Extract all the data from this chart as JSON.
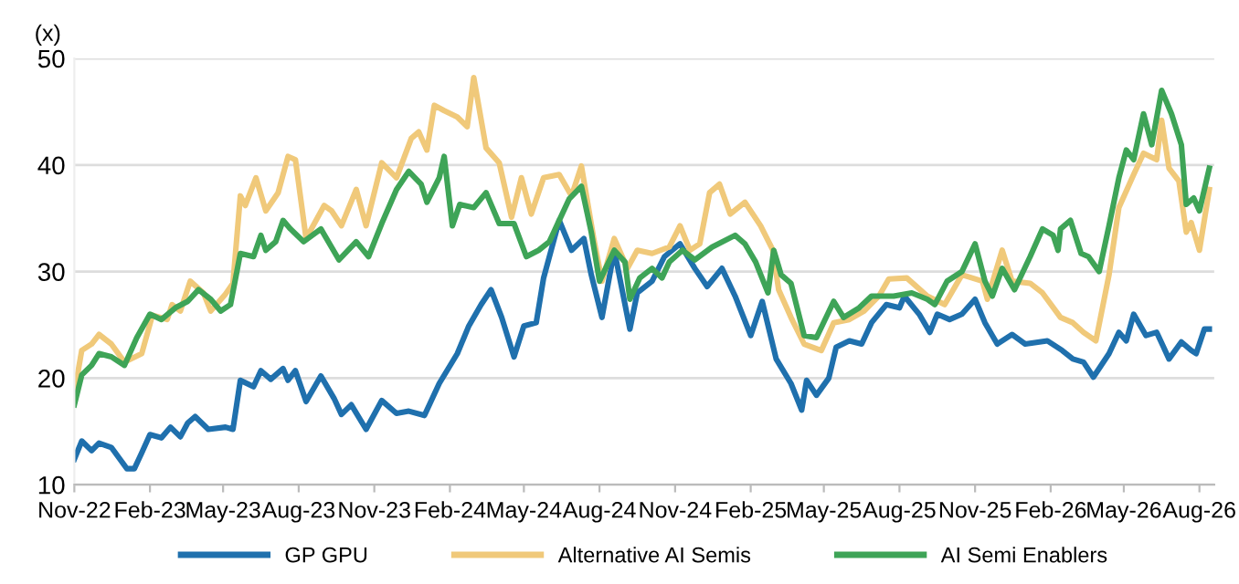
{
  "chart_data": {
    "type": "line",
    "ylabel": "(x)",
    "xlim": [
      "2022-11-01",
      "2026-08-19"
    ],
    "ylim": [
      10,
      50
    ],
    "yticks": [
      10,
      20,
      30,
      40,
      50
    ],
    "xticks": [
      {
        "value": "2022-11-01",
        "label": "Nov-22"
      },
      {
        "value": "2023-02-01",
        "label": "Feb-23"
      },
      {
        "value": "2023-05-01",
        "label": "May-23"
      },
      {
        "value": "2023-08-01",
        "label": "Aug-23"
      },
      {
        "value": "2023-11-01",
        "label": "Nov-23"
      },
      {
        "value": "2024-02-01",
        "label": "Feb-24"
      },
      {
        "value": "2024-05-01",
        "label": "May-24"
      },
      {
        "value": "2024-08-01",
        "label": "Aug-24"
      },
      {
        "value": "2024-11-01",
        "label": "Nov-24"
      },
      {
        "value": "2025-02-01",
        "label": "Feb-25"
      },
      {
        "value": "2025-05-01",
        "label": "May-25"
      },
      {
        "value": "2025-08-01",
        "label": "Aug-25"
      },
      {
        "value": "2025-11-01",
        "label": "Nov-25"
      },
      {
        "value": "2026-02-01",
        "label": "Feb-26"
      },
      {
        "value": "2026-05-01",
        "label": "May-26"
      },
      {
        "value": "2026-08-01",
        "label": "Aug-26"
      }
    ],
    "grid": "y",
    "legend": "bottom",
    "marker": "none",
    "line_style": "solid",
    "series": [
      {
        "name": "GP GPU",
        "color": "#1f70ad",
        "x": [
          "2022-11-01",
          "2022-11-10",
          "2022-11-22",
          "2022-12-01",
          "2022-12-16",
          "2023-01-04",
          "2023-01-13",
          "2023-01-22",
          "2023-02-01",
          "2023-02-15",
          "2023-02-26",
          "2023-03-10",
          "2023-03-19",
          "2023-03-28",
          "2023-04-13",
          "2023-05-04",
          "2023-05-13",
          "2023-05-22",
          "2023-06-07",
          "2023-06-16",
          "2023-06-28",
          "2023-07-13",
          "2023-07-19",
          "2023-07-28",
          "2023-08-10",
          "2023-08-28",
          "2023-09-13",
          "2023-09-22",
          "2023-10-04",
          "2023-10-22",
          "2023-11-10",
          "2023-11-28",
          "2023-12-13",
          "2024-01-01",
          "2024-01-19",
          "2024-02-10",
          "2024-02-24",
          "2024-03-10",
          "2024-03-22",
          "2024-04-04",
          "2024-04-19",
          "2024-05-01",
          "2024-05-16",
          "2024-05-25",
          "2024-06-13",
          "2024-06-28",
          "2024-07-13",
          "2024-07-22",
          "2024-08-04",
          "2024-08-19",
          "2024-09-07",
          "2024-09-16",
          "2024-10-04",
          "2024-10-19",
          "2024-11-07",
          "2024-11-25",
          "2024-12-10",
          "2024-12-28",
          "2025-01-13",
          "2025-02-01",
          "2025-02-15",
          "2025-03-04",
          "2025-03-22",
          "2025-04-04",
          "2025-04-10",
          "2025-04-22",
          "2025-05-07",
          "2025-05-16",
          "2025-06-01",
          "2025-06-16",
          "2025-06-28",
          "2025-07-16",
          "2025-08-01",
          "2025-08-07",
          "2025-08-25",
          "2025-09-07",
          "2025-09-16",
          "2025-10-01",
          "2025-10-16",
          "2025-11-01",
          "2025-11-13",
          "2025-11-28",
          "2025-12-16",
          "2026-01-01",
          "2026-01-28",
          "2026-02-15",
          "2026-02-28",
          "2026-03-13",
          "2026-03-25",
          "2026-04-13",
          "2026-04-25",
          "2026-05-04",
          "2026-05-13",
          "2026-05-28",
          "2026-06-10",
          "2026-06-25",
          "2026-07-10",
          "2026-07-22",
          "2026-07-28",
          "2026-08-07",
          "2026-08-13"
        ],
        "values": [
          12.4,
          14.1,
          13.2,
          13.9,
          13.5,
          11.5,
          11.5,
          13.0,
          14.7,
          14.4,
          15.4,
          14.5,
          15.8,
          16.4,
          15.2,
          15.4,
          15.2,
          19.8,
          19.2,
          20.7,
          19.9,
          20.9,
          19.8,
          20.7,
          17.8,
          20.2,
          18.1,
          16.6,
          17.5,
          15.2,
          17.9,
          16.7,
          16.9,
          16.5,
          19.5,
          22.3,
          24.9,
          26.9,
          28.3,
          25.7,
          22.0,
          24.9,
          25.2,
          29.4,
          34.8,
          32.0,
          33.1,
          29.7,
          25.7,
          32.0,
          24.6,
          28.0,
          29.1,
          31.4,
          32.6,
          30.3,
          28.6,
          30.3,
          27.7,
          24.0,
          27.2,
          21.8,
          19.5,
          17.0,
          19.8,
          18.4,
          20.0,
          22.9,
          23.5,
          23.2,
          25.2,
          26.9,
          26.6,
          27.7,
          26.0,
          24.3,
          26.0,
          25.5,
          26.0,
          27.4,
          25.2,
          23.2,
          24.1,
          23.2,
          23.5,
          22.6,
          21.8,
          21.5,
          20.1,
          22.3,
          24.3,
          23.5,
          26.0,
          24.0,
          24.3,
          21.8,
          23.4,
          22.6,
          22.3,
          24.6,
          24.6
        ]
      },
      {
        "name": "Alternative AI Semis",
        "color": "#f0c97a",
        "x": [
          "2022-11-01",
          "2022-11-10",
          "2022-11-22",
          "2022-12-01",
          "2022-12-16",
          "2023-01-01",
          "2023-01-22",
          "2023-02-04",
          "2023-02-22",
          "2023-02-28",
          "2023-03-10",
          "2023-03-22",
          "2023-04-07",
          "2023-04-16",
          "2023-05-04",
          "2023-05-13",
          "2023-05-22",
          "2023-05-28",
          "2023-06-10",
          "2023-06-22",
          "2023-07-07",
          "2023-07-19",
          "2023-07-28",
          "2023-08-10",
          "2023-09-01",
          "2023-09-10",
          "2023-09-22",
          "2023-10-10",
          "2023-10-22",
          "2023-11-10",
          "2023-11-28",
          "2023-12-16",
          "2023-12-25",
          "2024-01-04",
          "2024-01-13",
          "2024-01-25",
          "2024-02-10",
          "2024-02-22",
          "2024-03-01",
          "2024-03-16",
          "2024-04-01",
          "2024-04-16",
          "2024-04-28",
          "2024-05-10",
          "2024-05-25",
          "2024-06-13",
          "2024-06-28",
          "2024-07-10",
          "2024-07-25",
          "2024-08-04",
          "2024-08-19",
          "2024-09-04",
          "2024-09-16",
          "2024-10-04",
          "2024-10-25",
          "2024-11-07",
          "2024-11-19",
          "2024-12-01",
          "2024-12-13",
          "2024-12-25",
          "2025-01-07",
          "2025-01-25",
          "2025-02-13",
          "2025-02-28",
          "2025-03-07",
          "2025-03-22",
          "2025-04-07",
          "2025-04-28",
          "2025-05-13",
          "2025-06-01",
          "2025-06-19",
          "2025-07-07",
          "2025-07-19",
          "2025-08-10",
          "2025-09-04",
          "2025-09-25",
          "2025-10-16",
          "2025-11-10",
          "2025-11-16",
          "2025-12-04",
          "2025-12-16",
          "2026-01-07",
          "2026-01-22",
          "2026-02-13",
          "2026-02-28",
          "2026-03-13",
          "2026-03-28",
          "2026-04-13",
          "2026-04-25",
          "2026-05-13",
          "2026-05-25",
          "2026-06-10",
          "2026-06-16",
          "2026-06-25",
          "2026-07-07",
          "2026-07-16",
          "2026-07-22",
          "2026-08-01",
          "2026-08-13"
        ],
        "values": [
          18.6,
          22.6,
          23.2,
          24.1,
          23.2,
          21.5,
          22.3,
          25.9,
          25.5,
          26.9,
          26.3,
          29.1,
          28.0,
          26.3,
          27.9,
          28.9,
          37.1,
          36.2,
          38.8,
          35.7,
          37.4,
          40.8,
          40.5,
          33.1,
          36.2,
          35.7,
          34.3,
          37.7,
          34.3,
          40.2,
          38.8,
          42.5,
          43.1,
          41.4,
          45.6,
          45.1,
          44.5,
          43.6,
          48.2,
          41.6,
          40.2,
          35.1,
          38.8,
          35.4,
          38.8,
          39.1,
          37.1,
          39.9,
          33.1,
          29.1,
          33.1,
          30.3,
          32.0,
          31.7,
          32.3,
          34.3,
          32.0,
          32.6,
          37.4,
          38.2,
          35.4,
          36.5,
          34.3,
          32.0,
          28.3,
          25.7,
          23.2,
          22.6,
          25.2,
          25.5,
          26.3,
          27.7,
          29.3,
          29.4,
          27.7,
          26.9,
          29.7,
          29.1,
          27.4,
          32.0,
          29.1,
          28.9,
          28.0,
          25.7,
          25.2,
          24.3,
          23.5,
          29.7,
          36.0,
          39.1,
          41.1,
          40.5,
          44.2,
          39.7,
          38.5,
          33.7,
          34.6,
          32.0,
          37.7
        ]
      },
      {
        "name": "AI Semi Enablers",
        "color": "#3ea457",
        "x": [
          "2022-11-01",
          "2022-11-10",
          "2022-11-22",
          "2022-12-01",
          "2022-12-16",
          "2023-01-01",
          "2023-01-16",
          "2023-02-01",
          "2023-02-15",
          "2023-03-04",
          "2023-03-19",
          "2023-04-01",
          "2023-04-16",
          "2023-04-28",
          "2023-05-10",
          "2023-05-22",
          "2023-06-07",
          "2023-06-16",
          "2023-06-22",
          "2023-07-04",
          "2023-07-13",
          "2023-07-22",
          "2023-08-07",
          "2023-08-28",
          "2023-09-19",
          "2023-10-10",
          "2023-10-25",
          "2023-11-10",
          "2023-11-28",
          "2023-12-13",
          "2023-12-28",
          "2024-01-04",
          "2024-01-19",
          "2024-01-25",
          "2024-02-04",
          "2024-02-13",
          "2024-03-01",
          "2024-03-16",
          "2024-04-01",
          "2024-04-19",
          "2024-05-04",
          "2024-05-19",
          "2024-06-01",
          "2024-06-10",
          "2024-06-25",
          "2024-07-10",
          "2024-07-22",
          "2024-08-01",
          "2024-08-19",
          "2024-09-01",
          "2024-09-07",
          "2024-09-19",
          "2024-10-04",
          "2024-10-16",
          "2024-10-25",
          "2024-11-10",
          "2024-11-25",
          "2024-12-16",
          "2025-01-13",
          "2025-01-25",
          "2025-02-07",
          "2025-02-22",
          "2025-03-01",
          "2025-03-10",
          "2025-03-22",
          "2025-04-07",
          "2025-04-22",
          "2025-05-13",
          "2025-05-25",
          "2025-06-13",
          "2025-06-28",
          "2025-07-25",
          "2025-08-16",
          "2025-09-04",
          "2025-09-13",
          "2025-09-28",
          "2025-10-16",
          "2025-11-01",
          "2025-11-13",
          "2025-11-22",
          "2025-12-04",
          "2025-12-19",
          "2026-01-07",
          "2026-01-22",
          "2026-02-04",
          "2026-02-10",
          "2026-02-13",
          "2026-02-25",
          "2026-03-10",
          "2026-03-19",
          "2026-04-01",
          "2026-04-13",
          "2026-04-25",
          "2026-05-04",
          "2026-05-13",
          "2026-05-25",
          "2026-06-04",
          "2026-06-16",
          "2026-06-28",
          "2026-07-10",
          "2026-07-16",
          "2026-07-25",
          "2026-08-01",
          "2026-08-13"
        ],
        "values": [
          17.5,
          20.3,
          21.2,
          22.3,
          22.0,
          21.2,
          23.8,
          26.0,
          25.5,
          26.6,
          27.2,
          28.3,
          27.4,
          26.3,
          26.9,
          31.7,
          31.4,
          33.4,
          32.0,
          32.8,
          34.8,
          34.0,
          32.8,
          34.0,
          31.1,
          32.8,
          31.4,
          34.5,
          37.7,
          39.4,
          38.2,
          36.5,
          38.8,
          40.8,
          34.3,
          36.3,
          36.0,
          37.4,
          34.5,
          34.5,
          31.4,
          32.0,
          32.8,
          34.3,
          36.8,
          38.0,
          33.7,
          29.1,
          32.0,
          30.9,
          27.4,
          29.4,
          30.3,
          29.4,
          30.9,
          32.0,
          31.1,
          32.3,
          33.4,
          32.6,
          30.9,
          28.0,
          32.0,
          29.7,
          28.9,
          24.0,
          23.8,
          27.2,
          25.7,
          26.6,
          27.7,
          27.7,
          28.0,
          27.4,
          26.9,
          29.1,
          30.0,
          32.6,
          29.1,
          27.7,
          30.3,
          28.3,
          31.4,
          34.0,
          33.4,
          32.0,
          34.0,
          34.8,
          31.7,
          31.4,
          30.0,
          34.3,
          38.8,
          41.4,
          40.5,
          44.8,
          41.9,
          47.0,
          44.8,
          41.9,
          36.3,
          36.9,
          35.7,
          39.7
        ]
      }
    ]
  }
}
